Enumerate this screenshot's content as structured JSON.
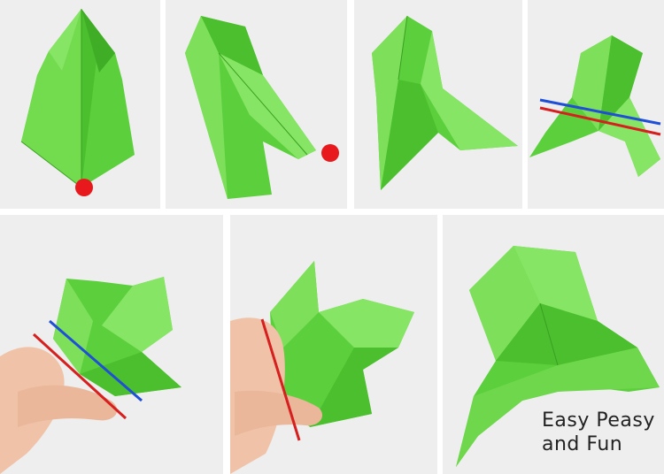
{
  "watermark": {
    "line1": "Easy Peasy",
    "line2": "and Fun"
  },
  "colors": {
    "paper_light": "#7ee05a",
    "paper": "#5cd03c",
    "paper_dark": "#3fae26",
    "marker_red": "#e8191d",
    "line_blue": "#1f4fd6",
    "line_red": "#d61f1f",
    "skin": "#f0c3a8",
    "background": "#ececec"
  },
  "steps": [
    {
      "name": "step-1",
      "marker": "red-dot"
    },
    {
      "name": "step-2",
      "marker": "red-dot"
    },
    {
      "name": "step-3",
      "marker": "none"
    },
    {
      "name": "step-4",
      "marker": "blue-red-fold-lines"
    },
    {
      "name": "step-5",
      "marker": "blue-red-fold-lines"
    },
    {
      "name": "step-6",
      "marker": "red-fold-line"
    },
    {
      "name": "step-7",
      "marker": "none"
    }
  ]
}
